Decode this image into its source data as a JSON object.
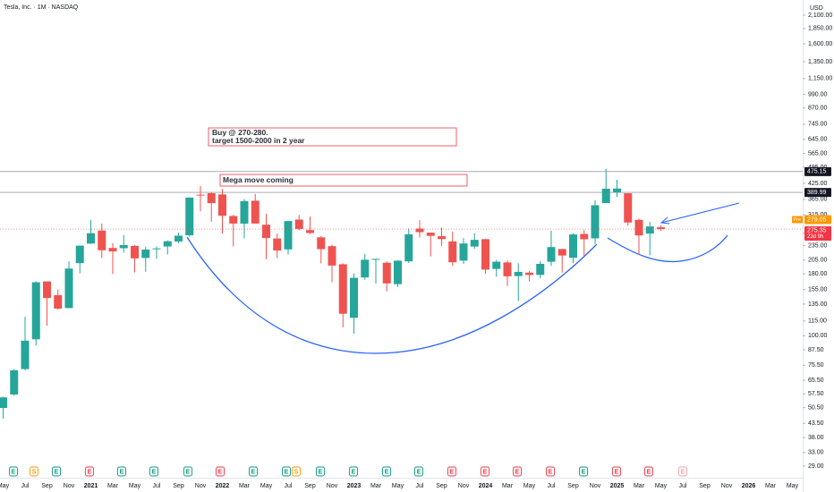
{
  "chart_data": {
    "type": "candlestick",
    "title": "Tesla, Inc. · 1M · NASDAQ",
    "y_axis_label": "USD",
    "log_scale": true,
    "grid": false,
    "up_color": "#26a69a",
    "down_color": "#ef5350",
    "categories": [
      "May",
      null,
      "Jul",
      null,
      "Sep",
      null,
      "Nov",
      null,
      "2021",
      null,
      "Mar",
      null,
      "May",
      null,
      "Jul",
      null,
      "Sep",
      null,
      "Nov",
      null,
      "2022",
      null,
      "Mar",
      null,
      "May",
      null,
      "Jul",
      null,
      "Sep",
      null,
      "Nov",
      null,
      "2023",
      null,
      "Mar",
      null,
      "May",
      null,
      "Jul",
      null,
      "Sep",
      null,
      "Nov",
      null,
      "2024",
      null,
      "Mar",
      null,
      "May",
      null,
      "Jul",
      null,
      "Sep",
      null,
      "Nov",
      null,
      "2025",
      null,
      "Mar",
      null,
      "May",
      null,
      "Jul",
      null,
      "Sep",
      null,
      "Nov",
      null,
      "2026",
      null,
      "Mar",
      null,
      "May"
    ],
    "open": [
      50.33,
      57.2,
      72.8,
      96.61,
      167.38,
      146.92,
      130.0,
      199.2,
      239.82,
      271.49,
      230.04,
      229.46,
      234.6,
      209.27,
      227.97,
      233.33,
      244.69,
      259.47,
      381.67,
      386.9,
      382.58,
      311.74,
      289.89,
      360.38,
      286.92,
      251.72,
      227.0,
      301.28,
      272.58,
      254.5,
      234.05,
      197.08,
      118.47,
      173.89,
      206.21,
      199.91,
      163.17,
      202.59,
      276.49,
      266.26,
      257.26,
      244.81,
      204.04,
      233.14,
      250.08,
      188.5,
      200.52,
      176.17,
      182.0,
      178.13,
      201.83,
      227.69,
      209.59,
      262.67,
      252.04,
      352.38,
      390.1,
      386.69,
      300.34,
      263.8,
      280.01,
      null,
      null,
      null,
      null,
      null,
      null,
      null,
      null,
      null,
      null,
      null,
      null
    ],
    "high": [
      56.0,
      72.9,
      119.67,
      167.5,
      167.5,
      155.3,
      202.6,
      235.67,
      300.13,
      290.15,
      241.05,
      260.26,
      236.4,
      232.33,
      233.33,
      247.33,
      266.33,
      371.74,
      414.5,
      390.95,
      402.67,
      315.0,
      366.0,
      384.29,
      318.5,
      264.21,
      298.32,
      314.67,
      310.0,
      257.5,
      237.4,
      198.92,
      180.68,
      217.65,
      207.79,
      202.69,
      204.48,
      276.99,
      299.29,
      266.47,
      278.98,
      268.94,
      252.75,
      265.13,
      251.25,
      205.6,
      204.52,
      198.87,
      184.77,
      203.2,
      271.0,
      228.34,
      264.86,
      273.54,
      361.93,
      488.54,
      439.74,
      386.69,
      303.94,
      294.86,
      285.0,
      null,
      null,
      null,
      null,
      null,
      null,
      null,
      null,
      null,
      null,
      null,
      null
    ],
    "low": [
      45.54,
      56.5,
      72.0,
      91.0,
      109.96,
      128.0,
      130.0,
      180.7,
      239.06,
      208.87,
      179.83,
      219.8,
      182.33,
      183.5,
      207.31,
      216.28,
      241.08,
      256.33,
      326.2,
      295.37,
      264.0,
      233.33,
      252.01,
      290.25,
      206.86,
      208.69,
      216.17,
      271.81,
      262.47,
      198.59,
      166.19,
      108.24,
      101.81,
      169.93,
      163.91,
      152.37,
      158.83,
      199.37,
      254.12,
      212.36,
      234.58,
      194.07,
      197.85,
      228.2,
      180.06,
      175.01,
      160.51,
      138.8,
      167.41,
      172.37,
      194.05,
      182.0,
      199.34,
      212.11,
      238.88,
      352.0,
      373.04,
      284.18,
      217.02,
      214.25,
      270.78,
      null,
      null,
      null,
      null,
      null,
      null,
      null,
      null,
      null,
      null,
      null,
      null
    ],
    "close": [
      55.67,
      71.99,
      95.38,
      166.11,
      143.0,
      129.35,
      189.2,
      235.22,
      264.51,
      225.17,
      222.64,
      236.48,
      208.41,
      226.57,
      229.07,
      245.24,
      258.49,
      371.33,
      381.59,
      352.26,
      312.24,
      290.14,
      359.2,
      290.25,
      252.75,
      224.47,
      297.15,
      275.61,
      265.25,
      227.54,
      194.7,
      123.18,
      173.22,
      205.71,
      207.46,
      164.31,
      203.93,
      261.77,
      267.43,
      258.08,
      250.22,
      200.84,
      240.08,
      248.48,
      187.29,
      201.88,
      175.79,
      183.28,
      178.08,
      197.88,
      232.07,
      214.11,
      261.63,
      249.85,
      345.16,
      403.84,
      404.6,
      292.98,
      259.16,
      282.16,
      275.35,
      null,
      null,
      null,
      null,
      null,
      null,
      null,
      null,
      null,
      null,
      null,
      null
    ],
    "ylim": [
      26.4,
      2425
    ],
    "yticks": [
      {
        "value": 29,
        "label": "29.00"
      },
      {
        "value": 33,
        "label": "33.00"
      },
      {
        "value": 38,
        "label": "38.00"
      },
      {
        "value": 43.5,
        "label": "43.50"
      },
      {
        "value": 50.5,
        "label": "50.50"
      },
      {
        "value": 57.5,
        "label": "57.50"
      },
      {
        "value": 65.5,
        "label": "65.50"
      },
      {
        "value": 75.5,
        "label": "75.50"
      },
      {
        "value": 87.5,
        "label": "87.50"
      },
      {
        "value": 100,
        "label": "100.00"
      },
      {
        "value": 115,
        "label": "115.00"
      },
      {
        "value": 135,
        "label": "135.00"
      },
      {
        "value": 155,
        "label": "155.00"
      },
      {
        "value": 180,
        "label": "180.00"
      },
      {
        "value": 205,
        "label": "205.00"
      },
      {
        "value": 235,
        "label": "235.00"
      },
      {
        "value": 265,
        "label": "265.00"
      },
      {
        "value": 315,
        "label": "315.00"
      },
      {
        "value": 365,
        "label": "365.00"
      },
      {
        "value": 425,
        "label": "425.00"
      },
      {
        "value": 495,
        "label": "495.00"
      },
      {
        "value": 565,
        "label": "565.00"
      },
      {
        "value": 645,
        "label": "645.00"
      },
      {
        "value": 745,
        "label": "745.00"
      },
      {
        "value": 870,
        "label": "870.00"
      },
      {
        "value": 990,
        "label": "990.00"
      },
      {
        "value": 1150,
        "label": "1,150.00"
      },
      {
        "value": 1350,
        "label": "1,350.00"
      },
      {
        "value": 1600,
        "label": "1,600.00"
      },
      {
        "value": 1850,
        "label": "1,850.00"
      },
      {
        "value": 2100,
        "label": "2,100.00"
      }
    ],
    "hlines": [
      {
        "value": 475.15,
        "label": "475.15"
      },
      {
        "value": 389.99,
        "label": "389.99"
      }
    ],
    "last_price": {
      "value": 275.35,
      "label": "275.35",
      "countdown": "23d 9h"
    },
    "premarket": {
      "value": 279.05,
      "label": "279.05",
      "tag": "Pre"
    },
    "annotations": [
      {
        "lines": [
          "Buy @ 270-280.",
          "target 1500-2000 in 2 year"
        ]
      },
      {
        "lines": [
          "Mega move coming"
        ]
      }
    ],
    "events": [
      {
        "label": "E",
        "color": "#089981"
      },
      {
        "label": "S",
        "color": "#ff9800"
      },
      {
        "label": "E",
        "color": "#089981"
      },
      {
        "label": "E",
        "color": "#f23645"
      },
      {
        "label": "E",
        "color": "#089981"
      },
      {
        "label": "E",
        "color": "#089981"
      },
      {
        "label": "E",
        "color": "#089981"
      },
      {
        "label": "E",
        "color": "#f23645"
      },
      {
        "label": "E",
        "color": "#089981"
      },
      {
        "label": "E",
        "color": "#089981"
      },
      {
        "label": "S",
        "color": "#ff9800"
      },
      {
        "label": "E",
        "color": "#089981"
      },
      {
        "label": "E",
        "color": "#089981"
      },
      {
        "label": "E",
        "color": "#089981"
      },
      {
        "label": "E",
        "color": "#089981"
      },
      {
        "label": "E",
        "color": "#f23645"
      },
      {
        "label": "E",
        "color": "#f23645"
      },
      {
        "label": "E",
        "color": "#f23645"
      },
      {
        "label": "E",
        "color": "#f23645"
      },
      {
        "label": "E",
        "color": "#089981"
      },
      {
        "label": "E",
        "color": "#f23645"
      },
      {
        "label": "E",
        "color": "#f23645"
      },
      {
        "label": "E",
        "color": "#f7a1a8"
      }
    ]
  }
}
